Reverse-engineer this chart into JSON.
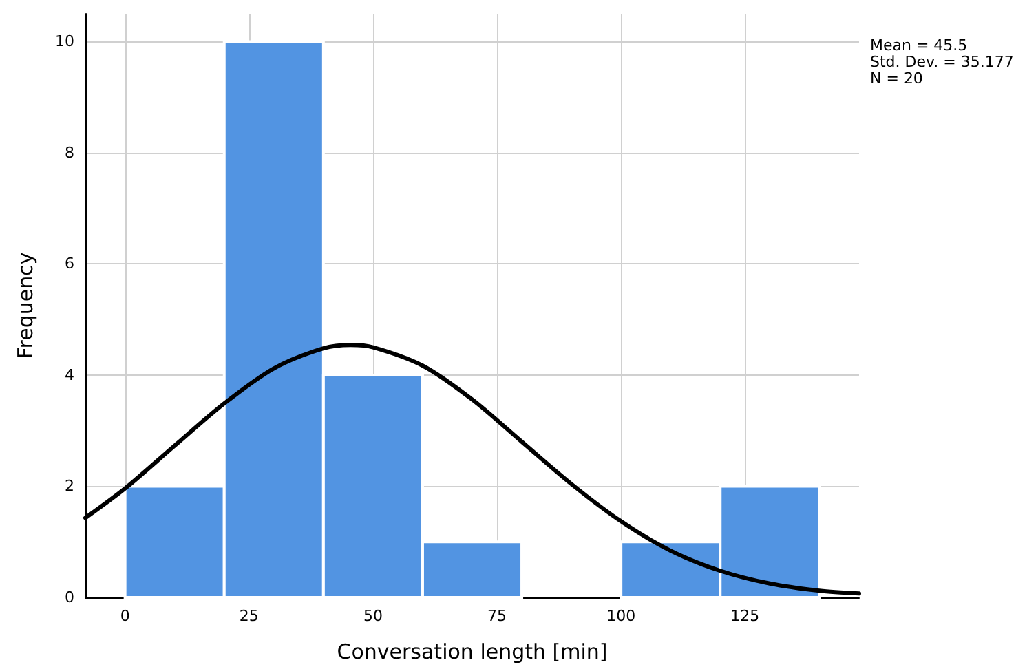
{
  "chart_data": {
    "type": "histogram",
    "xlabel": "Conversation length [min]",
    "ylabel": "Frequency",
    "bins": [
      0,
      20,
      40,
      60,
      80,
      100,
      120,
      140
    ],
    "values": [
      2,
      10,
      4,
      1,
      0,
      1,
      2
    ],
    "color": "#5294e2",
    "xlim": [
      -8,
      148
    ],
    "xticks": [
      0,
      25,
      50,
      75,
      100,
      125
    ],
    "ylim": [
      0,
      10.5
    ],
    "yticks": [
      0,
      2,
      4,
      6,
      8,
      10
    ],
    "grid": true,
    "series": [
      {
        "type": "line",
        "color": "#000000",
        "x": [
          -8,
          0,
          10,
          20,
          30,
          40,
          45.5,
          50,
          60,
          70,
          80,
          90,
          100,
          110,
          120,
          130,
          140,
          148
        ],
        "values": [
          1.43,
          1.96,
          2.73,
          3.49,
          4.12,
          4.48,
          4.54,
          4.5,
          4.17,
          3.56,
          2.8,
          2.04,
          1.37,
          0.84,
          0.48,
          0.25,
          0.12,
          0.07
        ]
      }
    ],
    "annotations": [
      "Mean = 45.5",
      "Std. Dev. = 35.177",
      "N = 20"
    ]
  }
}
